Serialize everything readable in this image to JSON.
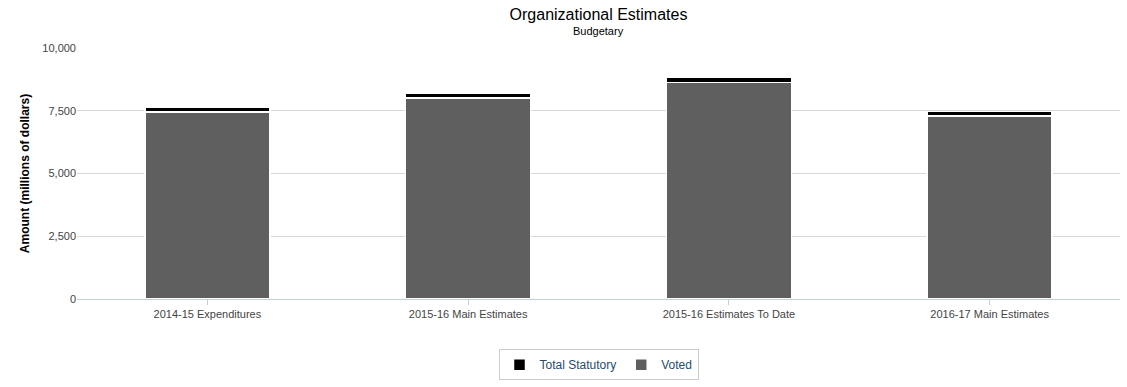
{
  "chart_data": {
    "type": "bar",
    "title": "Organizational Estimates",
    "subtitle": "Budgetary",
    "y_label": "Amount (millions of dollars)",
    "categories": [
      "2014-15 Expenditures",
      "2015-16 Main Estimates",
      "2015-16 Estimates To Date",
      "2016-17 Main Estimates"
    ],
    "series": [
      {
        "name": "Voted",
        "color": "#5f5f5f",
        "values": [
          7450,
          8000,
          8630,
          7300
        ]
      },
      {
        "name": "Total Statutory",
        "color": "#000000",
        "values": [
          180,
          185,
          185,
          180
        ]
      }
    ],
    "stacked": true,
    "ylim": [
      0,
      10000
    ],
    "yticks": [
      0,
      {
        "value": 2500,
        "label": "2,500"
      },
      {
        "value": 5000,
        "label": "5,000"
      },
      {
        "value": 7500,
        "label": "7,500"
      },
      {
        "value": 10000,
        "label": "10,000"
      }
    ],
    "grid": true,
    "legend": "bottom"
  }
}
